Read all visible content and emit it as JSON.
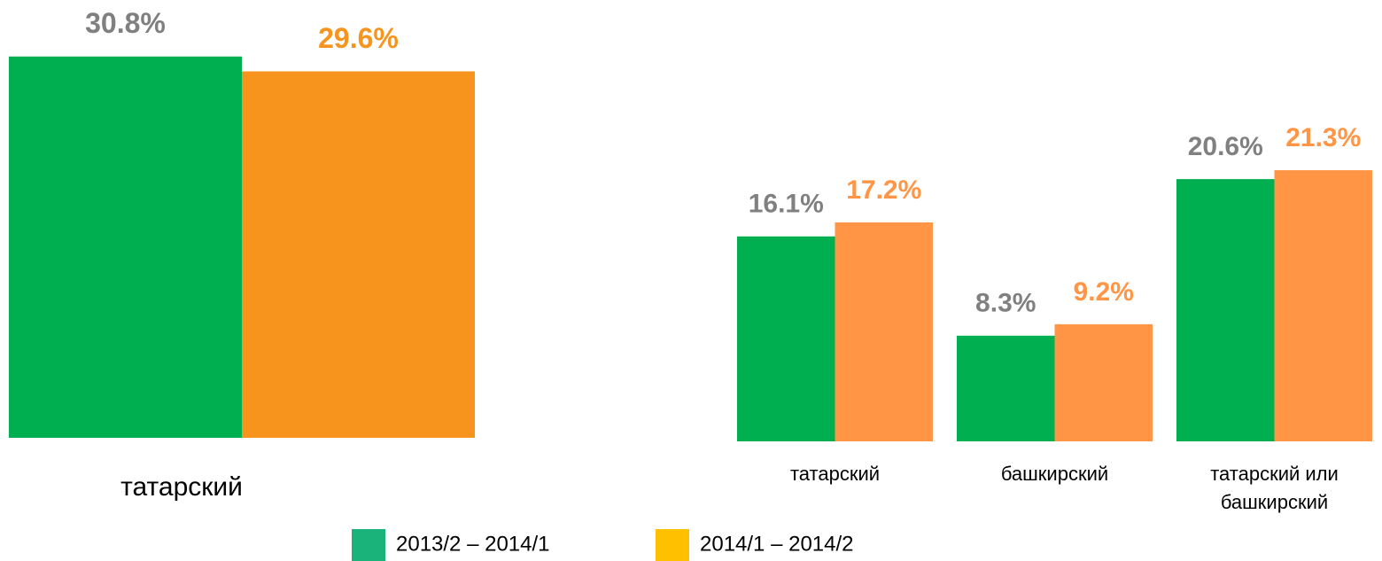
{
  "chart_data": [
    {
      "type": "bar",
      "categories": [
        "татарский"
      ],
      "series": [
        {
          "color": "#00b050",
          "label_color": "#808080",
          "values": [
            30.8
          ],
          "value_labels": [
            "30.8%"
          ]
        },
        {
          "color": "#f7941d",
          "label_color": "#f7941d",
          "values": [
            29.6
          ],
          "value_labels": [
            "29.6%"
          ]
        }
      ],
      "ylim": [
        0,
        32
      ]
    },
    {
      "type": "bar",
      "categories": [
        "татарский",
        "башкирский",
        "татарский или башкирский"
      ],
      "series": [
        {
          "color": "#00b050",
          "label_color": "#808080",
          "values": [
            16.1,
            8.3,
            20.6
          ],
          "value_labels": [
            "16.1%",
            "8.3%",
            "20.6%"
          ]
        },
        {
          "color": "#ff9545",
          "label_color": "#ff9545",
          "values": [
            17.2,
            9.2,
            21.3
          ],
          "value_labels": [
            "17.2%",
            "9.2%",
            "21.3%"
          ]
        }
      ],
      "ylim": [
        0,
        22
      ]
    }
  ],
  "legend": {
    "items": [
      {
        "label": "2013/2 – 2014/1",
        "color": "#1ab37a"
      },
      {
        "label": "2014/1 – 2014/2",
        "color": "#ffc000"
      }
    ]
  }
}
